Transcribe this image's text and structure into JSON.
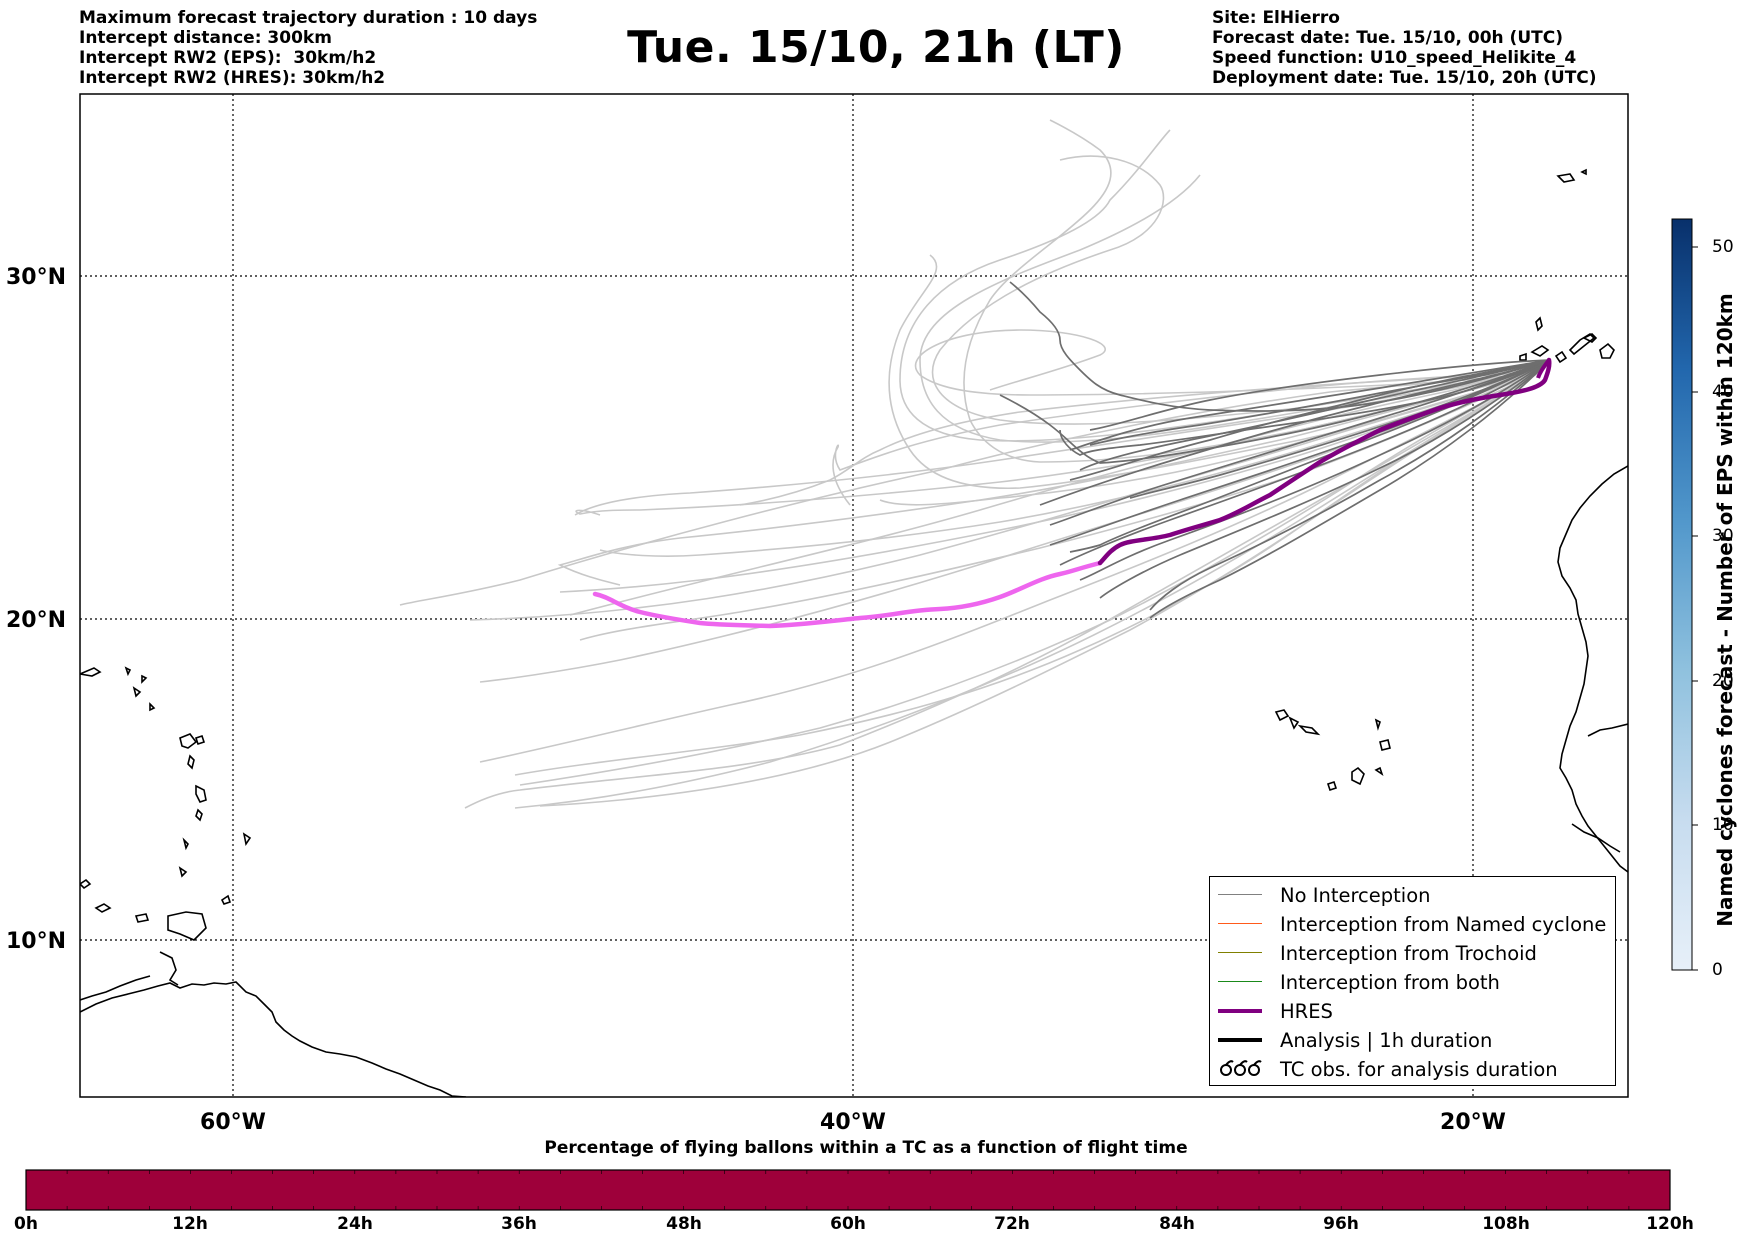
{
  "header": {
    "left_lines": [
      "Maximum forecast trajectory duration : 10 days",
      "Intercept distance: 300km",
      "Intercept RW2 (EPS):  30km/h2",
      "Intercept RW2 (HRES): 30km/h2"
    ],
    "title": "Tue. 15/10, 21h (LT)",
    "right_lines": [
      "Site: ElHierro",
      "Forecast date: Tue. 15/10, 00h (UTC)",
      "Speed function: U10_speed_Helikite_4",
      "Deployment date: Tue. 15/10, 20h (UTC)"
    ]
  },
  "map": {
    "lat_labels": [
      "30°N",
      "20°N",
      "10°N"
    ],
    "lon_labels": [
      "60°W",
      "40°W",
      "20°W"
    ]
  },
  "legend": {
    "items": [
      {
        "label": "No Interception",
        "color": "#808080",
        "style": "thin"
      },
      {
        "label": "Interception from Named cyclone",
        "color": "#ff5a1a",
        "style": "thin"
      },
      {
        "label": "Interception from Trochoid",
        "color": "#808000",
        "style": "thin"
      },
      {
        "label": "Interception from both",
        "color": "#1a8a1a",
        "style": "thin"
      },
      {
        "label": "HRES",
        "color": "#800080",
        "style": "thick"
      },
      {
        "label": "Analysis | 1h duration",
        "color": "#000000",
        "style": "thick"
      },
      {
        "label": "TC obs. for analysis duration",
        "color": "#000000",
        "style": "symbol",
        "symbol": "ᘐᘐᘐ"
      }
    ]
  },
  "colorbar": {
    "label": "Named cyclones forecast - Number of EPS within 120km",
    "ticks": [
      "0",
      "10",
      "20",
      "30",
      "40",
      "50"
    ],
    "max": 52,
    "colors": [
      "#e4eef8",
      "#08306b"
    ]
  },
  "bottom_bar": {
    "title": "Percentage of flying ballons within a TC as a function of flight time",
    "color": "#9e003a",
    "tick_labels": [
      "0h",
      "12h",
      "24h",
      "36h",
      "48h",
      "60h",
      "72h",
      "84h",
      "96h",
      "108h",
      "120h"
    ]
  }
}
